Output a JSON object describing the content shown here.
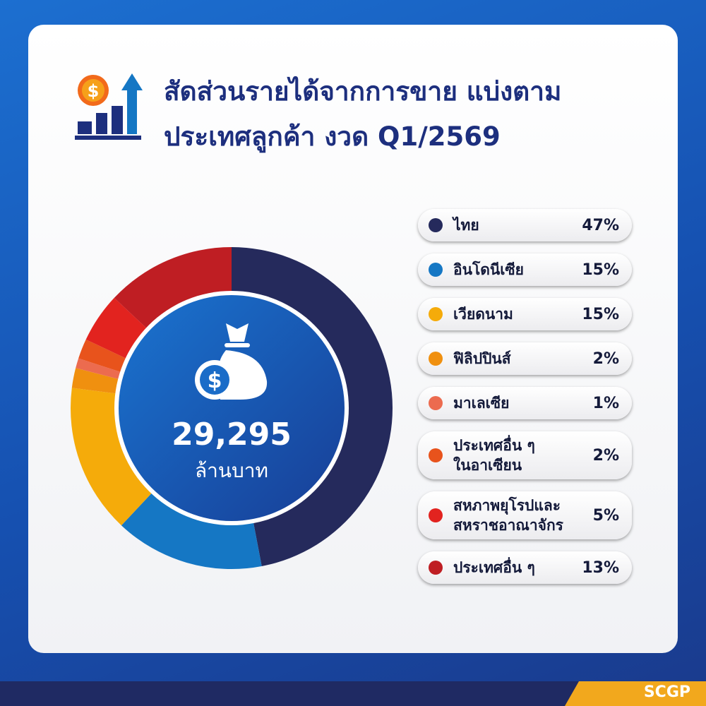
{
  "chart_data": {
    "type": "pie",
    "donut": true,
    "title": "สัดส่วนรายได้จากการขาย แบ่งตาม\nประเทศลูกค้า งวด Q1/2569",
    "categories": [
      "ไทย",
      "อินโดนีเซีย",
      "เวียดนาม",
      "ฟิลิปปินส์",
      "มาเลเซีย",
      "ประเทศอื่น ๆ\nในอาเซียน",
      "สหภาพยุโรปและ\nสหราชอาณาจักร",
      "ประเทศอื่น ๆ"
    ],
    "values": [
      47,
      15,
      15,
      2,
      1,
      2,
      5,
      13
    ],
    "value_labels": [
      "47%",
      "15%",
      "15%",
      "2%",
      "1%",
      "2%",
      "5%",
      "13%"
    ],
    "colors": [
      "#252a5c",
      "#1577c4",
      "#f5ab0a",
      "#f0900f",
      "#ec6b4f",
      "#e8531c",
      "#e2231f",
      "#bf1e23"
    ],
    "center_value": "29,295",
    "center_unit": "ล้านบาท"
  },
  "brand": "SCGP"
}
